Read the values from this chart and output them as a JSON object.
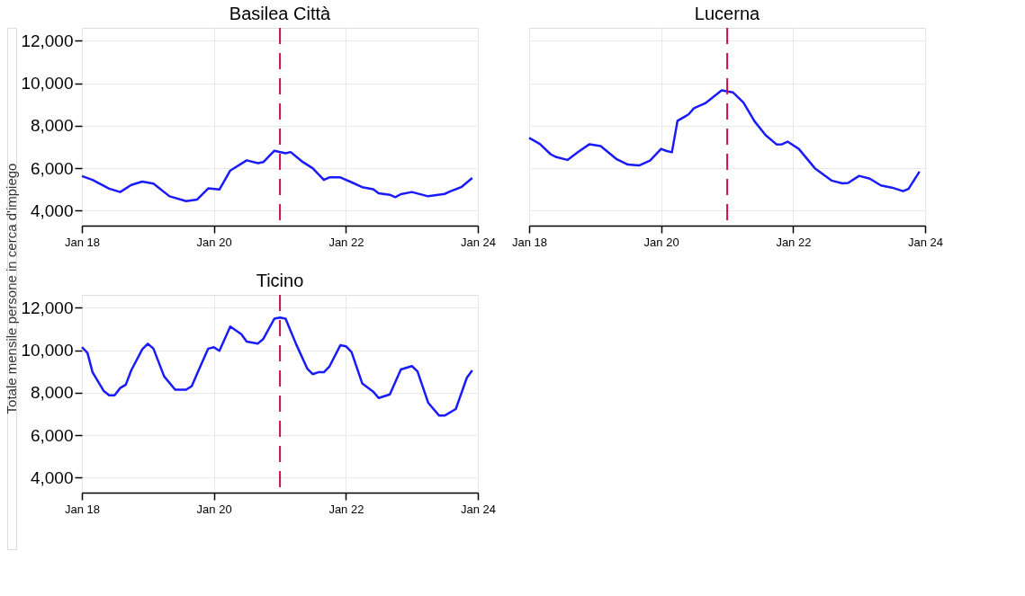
{
  "chart_data": [
    {
      "type": "line",
      "title": "Basilea Città",
      "ylabel": "Totale mensile persone in cerca d'impiego",
      "grid": true,
      "xlim": [
        "2018-01-01",
        "2024-01-01"
      ],
      "ylim": [
        3300,
        12600
      ],
      "xticks": [
        {
          "value": "2018-01-01",
          "label": "Jan 18"
        },
        {
          "value": "2020-01-01",
          "label": "Jan 20"
        },
        {
          "value": "2022-01-01",
          "label": "Jan 22"
        },
        {
          "value": "2024-01-01",
          "label": "Jan 24"
        }
      ],
      "yticks": [
        {
          "value": 4000,
          "label": "4,000"
        },
        {
          "value": 6000,
          "label": "6,000"
        },
        {
          "value": 8000,
          "label": "8,000"
        },
        {
          "value": 10000,
          "label": "10,000"
        },
        {
          "value": 12000,
          "label": "12,000"
        }
      ],
      "ref_lines": [
        {
          "axis": "x",
          "value": "2021-01-01",
          "color": "#cc1144",
          "line_style": "dashed"
        }
      ],
      "x": [
        "2018-01",
        "2018-03",
        "2018-06",
        "2018-08",
        "2018-10",
        "2018-12",
        "2019-02",
        "2019-05",
        "2019-08",
        "2019-10",
        "2019-12",
        "2020-02",
        "2020-04",
        "2020-07",
        "2020-09",
        "2020-10",
        "2020-12",
        "2021-02",
        "2021-03",
        "2021-05",
        "2021-07",
        "2021-09",
        "2021-10",
        "2021-12",
        "2022-02",
        "2022-04",
        "2022-06",
        "2022-07",
        "2022-09",
        "2022-10",
        "2022-11",
        "2023-01",
        "2023-04",
        "2023-07",
        "2023-08",
        "2023-10",
        "2023-12"
      ],
      "series": [
        {
          "color": "#1a1aff",
          "values": [
            5630,
            5450,
            5040,
            4880,
            5210,
            5370,
            5280,
            4680,
            4450,
            4530,
            5050,
            5000,
            5890,
            6370,
            6240,
            6290,
            6820,
            6700,
            6760,
            6330,
            6000,
            5450,
            5570,
            5570,
            5340,
            5110,
            5010,
            4820,
            4750,
            4640,
            4780,
            4880,
            4680,
            4790,
            4910,
            5110,
            5540
          ]
        }
      ]
    },
    {
      "type": "line",
      "title": "Lucerna",
      "grid": true,
      "tick_labels": "x",
      "xlim": [
        "2018-01-01",
        "2024-01-01"
      ],
      "ylim": [
        3300,
        12600
      ],
      "xticks": [
        {
          "value": "2018-01-01",
          "label": "Jan 18"
        },
        {
          "value": "2020-01-01",
          "label": "Jan 20"
        },
        {
          "value": "2022-01-01",
          "label": "Jan 22"
        },
        {
          "value": "2024-01-01",
          "label": "Jan 24"
        }
      ],
      "yticks": [
        4000,
        6000,
        8000,
        10000,
        12000
      ],
      "ref_lines": [
        {
          "axis": "x",
          "value": "2021-01-01",
          "color": "#cc1144",
          "line_style": "dashed"
        }
      ],
      "x": [
        "2018-01",
        "2018-03",
        "2018-05",
        "2018-06",
        "2018-08",
        "2018-10",
        "2018-12",
        "2019-02",
        "2019-05",
        "2019-07",
        "2019-09",
        "2019-11",
        "2020-01",
        "2020-02",
        "2020-03",
        "2020-04",
        "2020-06",
        "2020-07",
        "2020-09",
        "2020-10",
        "2020-12",
        "2021-02",
        "2021-04",
        "2021-06",
        "2021-08",
        "2021-10",
        "2021-11",
        "2021-12",
        "2022-02",
        "2022-05",
        "2022-08",
        "2022-10",
        "2022-11",
        "2023-01",
        "2023-03",
        "2023-05",
        "2023-07",
        "2023-09",
        "2023-10",
        "2023-12"
      ],
      "series": [
        {
          "color": "#1a1aff",
          "values": [
            7430,
            7140,
            6650,
            6520,
            6390,
            6780,
            7130,
            7040,
            6420,
            6170,
            6130,
            6360,
            6910,
            6810,
            6750,
            8230,
            8530,
            8820,
            9050,
            9250,
            9660,
            9570,
            9090,
            8210,
            7560,
            7120,
            7130,
            7250,
            6910,
            6000,
            5420,
            5290,
            5310,
            5640,
            5510,
            5190,
            5090,
            4920,
            5030,
            5840
          ]
        }
      ]
    },
    {
      "type": "line",
      "title": "Ticino",
      "grid": true,
      "xlim": [
        "2018-01-01",
        "2024-01-01"
      ],
      "ylim": [
        3300,
        12600
      ],
      "xticks": [
        {
          "value": "2018-01-01",
          "label": "Jan 18"
        },
        {
          "value": "2020-01-01",
          "label": "Jan 20"
        },
        {
          "value": "2022-01-01",
          "label": "Jan 22"
        },
        {
          "value": "2024-01-01",
          "label": "Jan 24"
        }
      ],
      "yticks": [
        {
          "value": 4000,
          "label": "4,000"
        },
        {
          "value": 6000,
          "label": "6,000"
        },
        {
          "value": 8000,
          "label": "8,000"
        },
        {
          "value": 10000,
          "label": "10,000"
        },
        {
          "value": 12000,
          "label": "12,000"
        }
      ],
      "ref_lines": [
        {
          "axis": "x",
          "value": "2021-01-01",
          "color": "#cc1144",
          "line_style": "dashed"
        }
      ],
      "x": [
        "2018-01",
        "2018-02",
        "2018-03",
        "2018-05",
        "2018-06",
        "2018-07",
        "2018-08",
        "2018-09",
        "2018-10",
        "2018-12",
        "2019-01",
        "2019-02",
        "2019-04",
        "2019-06",
        "2019-08",
        "2019-09",
        "2019-10",
        "2019-12",
        "2020-01",
        "2020-02",
        "2020-04",
        "2020-06",
        "2020-07",
        "2020-09",
        "2020-10",
        "2020-12",
        "2021-01",
        "2021-02",
        "2021-04",
        "2021-06",
        "2021-07",
        "2021-08",
        "2021-09",
        "2021-10",
        "2021-12",
        "2022-01",
        "2022-02",
        "2022-04",
        "2022-06",
        "2022-07",
        "2022-09",
        "2022-11",
        "2023-01",
        "2023-02",
        "2023-04",
        "2023-06",
        "2023-07",
        "2023-09",
        "2023-11",
        "2023-12"
      ],
      "series": [
        {
          "color": "#1a1aff",
          "values": [
            10140,
            9870,
            8960,
            8090,
            7880,
            7880,
            8220,
            8380,
            9050,
            10040,
            10300,
            10070,
            8770,
            8140,
            8140,
            8310,
            8900,
            10070,
            10140,
            9970,
            11110,
            10750,
            10400,
            10310,
            10530,
            11480,
            11530,
            11480,
            10270,
            9130,
            8870,
            8960,
            8960,
            9220,
            10230,
            10180,
            9910,
            8440,
            8050,
            7750,
            7920,
            9090,
            9250,
            9000,
            7530,
            6920,
            6920,
            7230,
            8700,
            9050
          ]
        }
      ]
    }
  ]
}
